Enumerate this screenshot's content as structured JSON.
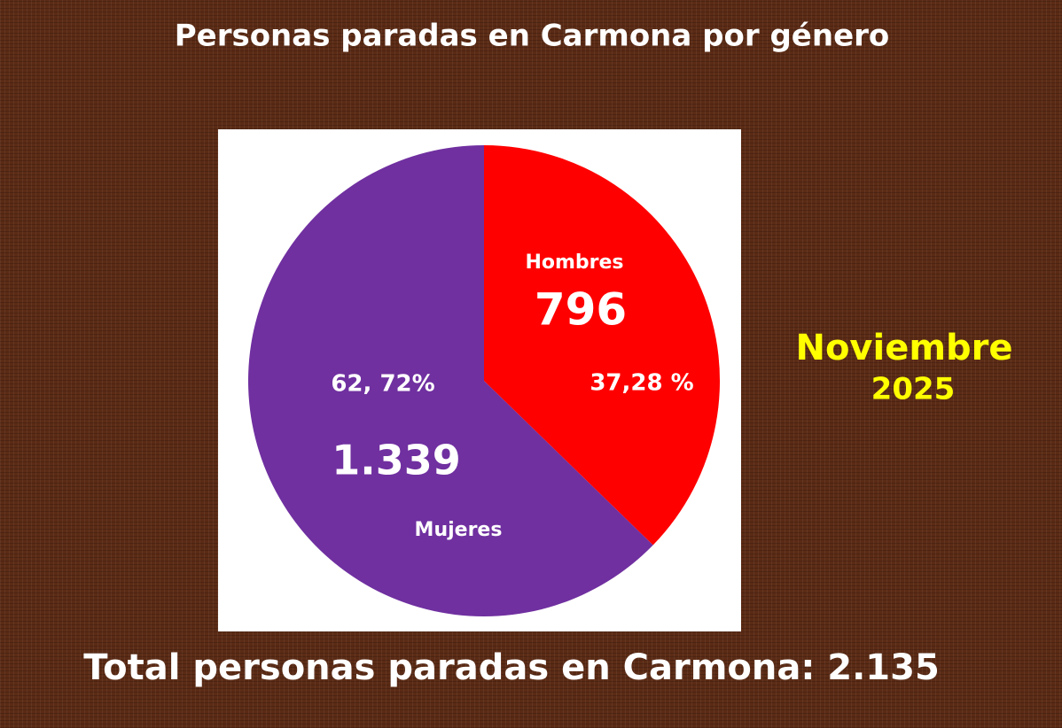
{
  "chart_data": {
    "type": "pie",
    "title": "Personas paradas en Carmona por género",
    "categories": [
      "Hombres",
      "Mujeres"
    ],
    "values": [
      796,
      1339
    ],
    "value_labels": [
      "796",
      "1.339"
    ],
    "percentages": [
      37.28,
      62.72
    ],
    "percentage_labels": [
      "37,28 %",
      "62, 72%"
    ],
    "colors": [
      "#ff0000",
      "#7030a0"
    ],
    "annotation": [
      "Noviembre",
      "2025"
    ],
    "footer": "Total personas paradas en Carmona: 2.135"
  }
}
